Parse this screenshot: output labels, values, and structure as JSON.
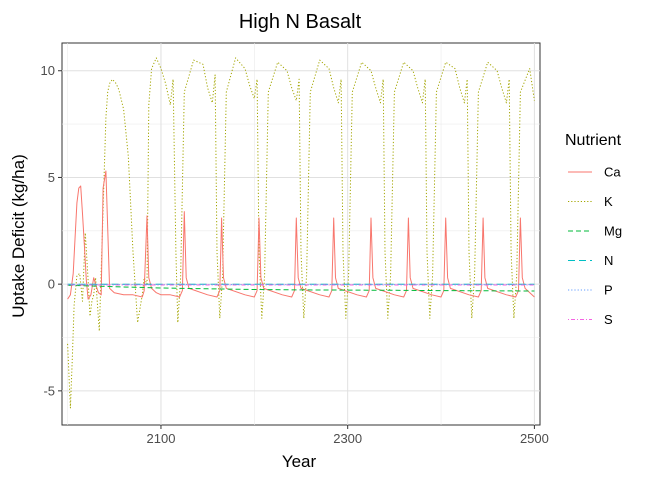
{
  "chart_data": {
    "type": "line",
    "title": "High N Basalt",
    "xlabel": "Year",
    "ylabel": "Uptake Deficit (kg/ha)",
    "xlim": [
      1994,
      2506
    ],
    "ylim": [
      -6.6,
      11.3
    ],
    "x_ticks": [
      2100,
      2300,
      2500
    ],
    "y_ticks": [
      -5,
      0,
      5,
      10
    ],
    "grid": true,
    "legend": {
      "title": "Nutrient",
      "placement": "right",
      "entries": [
        "Ca",
        "K",
        "Mg",
        "N",
        "P",
        "S"
      ]
    },
    "series": [
      {
        "name": "K",
        "color": "#a3a500",
        "dash": "dotted",
        "x": [
          2000,
          2003,
          2005,
          2007,
          2010,
          2013,
          2016,
          2019,
          2022,
          2024,
          2026,
          2028,
          2030,
          2034,
          2037,
          2041,
          2043,
          2045,
          2048,
          2052,
          2055,
          2060,
          2065,
          2070,
          2075,
          2080,
          2082,
          2085,
          2087,
          2090,
          2095,
          2100,
          2105,
          2110,
          2113,
          2116,
          2118,
          2121,
          2125,
          2135,
          2145,
          2150,
          2155,
          2158,
          2160,
          2163,
          2166,
          2170,
          2180,
          2190,
          2195,
          2200,
          2203,
          2205,
          2208,
          2211,
          2215,
          2225,
          2235,
          2240,
          2245,
          2248,
          2250,
          2253,
          2256,
          2260,
          2270,
          2280,
          2285,
          2290,
          2293,
          2295,
          2298,
          2301,
          2305,
          2315,
          2325,
          2330,
          2335,
          2338,
          2340,
          2343,
          2346,
          2350,
          2360,
          2370,
          2375,
          2380,
          2383,
          2385,
          2388,
          2391,
          2395,
          2405,
          2415,
          2420,
          2425,
          2428,
          2430,
          2433,
          2436,
          2440,
          2450,
          2460,
          2465,
          2470,
          2473,
          2475,
          2478,
          2481,
          2485,
          2495,
          2500
        ],
        "y": [
          -2.8,
          -5.8,
          -3.5,
          -1.0,
          0.4,
          0.5,
          -0.8,
          2.4,
          0.2,
          -1.5,
          -0.8,
          -0.5,
          0.3,
          -2.2,
          2.0,
          7.8,
          9.0,
          9.4,
          9.6,
          9.4,
          9.1,
          8.2,
          6.0,
          1.5,
          -1.8,
          -0.5,
          0.3,
          0.0,
          8.4,
          10.1,
          10.6,
          10.1,
          9.4,
          8.4,
          9.6,
          1.5,
          -1.8,
          0.3,
          9.0,
          10.5,
          10.3,
          9.2,
          8.5,
          9.8,
          1.5,
          -1.6,
          0.4,
          9.0,
          10.6,
          10.1,
          9.3,
          8.7,
          9.6,
          1.5,
          -1.6,
          0.4,
          9.0,
          10.4,
          10.0,
          9.2,
          8.6,
          9.6,
          1.5,
          -1.6,
          0.4,
          9.0,
          10.5,
          10.1,
          9.2,
          8.5,
          9.6,
          1.5,
          -1.6,
          0.4,
          9.0,
          10.4,
          10.0,
          9.2,
          8.5,
          9.6,
          1.5,
          -1.6,
          0.4,
          9.0,
          10.4,
          10.0,
          9.2,
          8.5,
          9.6,
          1.5,
          -1.6,
          0.4,
          9.0,
          10.4,
          10.1,
          9.2,
          8.5,
          9.6,
          1.5,
          -1.6,
          0.4,
          9.0,
          10.4,
          10.0,
          9.2,
          8.5,
          9.6,
          1.5,
          -1.6,
          0.4,
          9.0,
          10.1,
          8.6
        ]
      },
      {
        "name": "Ca",
        "color": "#f8766d",
        "dash": "solid",
        "x": [
          2000,
          2003,
          2006,
          2008,
          2010,
          2012,
          2014,
          2016,
          2018,
          2020,
          2022,
          2025,
          2028,
          2030,
          2033,
          2036,
          2038,
          2041,
          2045,
          2050,
          2060,
          2070,
          2080,
          2082,
          2085,
          2087,
          2090,
          2095,
          2100,
          2110,
          2120,
          2123,
          2125,
          2127,
          2130,
          2150,
          2160,
          2163,
          2165,
          2167,
          2170,
          2190,
          2200,
          2203,
          2205,
          2207,
          2210,
          2230,
          2240,
          2243,
          2245,
          2247,
          2250,
          2270,
          2280,
          2283,
          2285,
          2287,
          2290,
          2310,
          2320,
          2323,
          2325,
          2327,
          2330,
          2350,
          2360,
          2363,
          2365,
          2367,
          2370,
          2390,
          2400,
          2403,
          2405,
          2407,
          2410,
          2430,
          2440,
          2443,
          2445,
          2447,
          2450,
          2470,
          2480,
          2483,
          2485,
          2487,
          2490,
          2500
        ],
        "y": [
          -0.7,
          -0.5,
          0.5,
          2.2,
          3.8,
          4.5,
          4.6,
          3.3,
          1.8,
          0.2,
          -0.7,
          -0.5,
          0.3,
          0.0,
          -0.4,
          -0.5,
          4.5,
          5.3,
          -0.2,
          -0.4,
          -0.5,
          -0.5,
          -0.6,
          -0.3,
          3.2,
          0.3,
          -0.2,
          -0.4,
          -0.5,
          -0.5,
          -0.6,
          -0.3,
          3.4,
          0.3,
          -0.2,
          -0.5,
          -0.6,
          -0.3,
          3.1,
          0.3,
          -0.2,
          -0.5,
          -0.6,
          -0.3,
          3.1,
          0.3,
          -0.2,
          -0.5,
          -0.6,
          -0.3,
          3.1,
          0.3,
          -0.2,
          -0.5,
          -0.6,
          -0.3,
          3.1,
          0.3,
          -0.2,
          -0.5,
          -0.6,
          -0.3,
          3.1,
          0.3,
          -0.2,
          -0.5,
          -0.6,
          -0.3,
          3.1,
          0.3,
          -0.2,
          -0.5,
          -0.6,
          -0.3,
          3.1,
          0.3,
          -0.2,
          -0.5,
          -0.6,
          -0.3,
          3.1,
          0.3,
          -0.2,
          -0.5,
          -0.6,
          -0.3,
          3.1,
          0.3,
          -0.2,
          -0.6
        ]
      },
      {
        "name": "Mg",
        "color": "#00ba38",
        "dash": "dashed",
        "x": [
          2000,
          2050,
          2100,
          2150,
          2200,
          2250,
          2300,
          2350,
          2400,
          2450,
          2500
        ],
        "y": [
          -0.05,
          -0.12,
          -0.18,
          -0.22,
          -0.25,
          -0.27,
          -0.28,
          -0.29,
          -0.3,
          -0.31,
          -0.32
        ]
      },
      {
        "name": "N",
        "color": "#00bfc4",
        "dash": "longdash",
        "x": [
          2000,
          2100,
          2200,
          2300,
          2400,
          2500
        ],
        "y": [
          0.0,
          0.0,
          0.0,
          0.0,
          0.0,
          0.0
        ]
      },
      {
        "name": "P",
        "color": "#619cff",
        "dash": "dotted",
        "x": [
          2000,
          2100,
          2200,
          2300,
          2400,
          2500
        ],
        "y": [
          -0.02,
          -0.02,
          -0.02,
          -0.02,
          -0.02,
          -0.02
        ]
      },
      {
        "name": "S",
        "color": "#f564e3",
        "dash": "dotdash",
        "x": [
          2000,
          2100,
          2200,
          2300,
          2400,
          2500
        ],
        "y": [
          -0.04,
          -0.04,
          -0.04,
          -0.04,
          -0.04,
          -0.04
        ]
      }
    ]
  }
}
